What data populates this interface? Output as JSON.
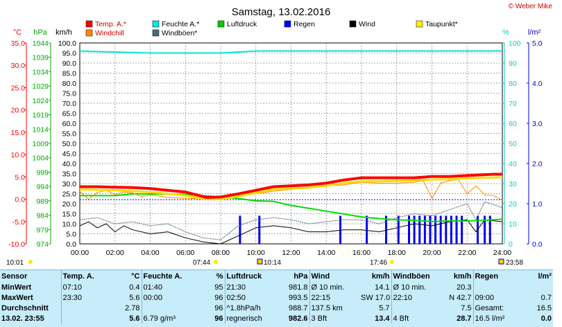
{
  "title": "Samstag, 13.02.2016",
  "copyright": "© Weber Mike",
  "axis_units": {
    "temp": "°C",
    "hpa": "hPa",
    "kmh": "km/h",
    "pct": "%",
    "rain": "l/m²"
  },
  "legend": [
    {
      "label": "Temp. A.*",
      "color": "#ff0000"
    },
    {
      "label": "Feuchte A.*",
      "color": "#00e5e5"
    },
    {
      "label": "Luftdruck",
      "color": "#00cc00"
    },
    {
      "label": "Regen",
      "color": "#0000ff"
    },
    {
      "label": "Wind",
      "color": "#000000"
    },
    {
      "label": "Taupunkt*",
      "color": "#ffee00"
    },
    {
      "label": "Windchill",
      "color": "#ff8800"
    },
    {
      "label": "Windböen*",
      "color": "#4a6b74"
    }
  ],
  "colors": {
    "temp_axis": "#ff0000",
    "hpa_axis": "#00aa00",
    "pct_axis": "#00cccc",
    "rain_axis": "#0000cc",
    "grid": "#8a8a8a"
  },
  "events": {
    "left_time": "10:01",
    "sunrise": "07:44",
    "middle": "10:14",
    "sunset": "17:46",
    "right_time": "23:58"
  },
  "chart_data": {
    "type": "line",
    "x_unit": "hour",
    "xlim": [
      0,
      24
    ],
    "x_tick_labels": [
      "00:00",
      "02:00",
      "04:00",
      "06:00",
      "08:00",
      "10:00",
      "12:00",
      "14:00",
      "16:00",
      "18:00",
      "20:00",
      "22:00",
      "24:00"
    ],
    "y_axes": {
      "temp": {
        "ticks": [
          "35.0",
          "30.0",
          "25.0",
          "20.0",
          "15.0",
          "10.0",
          "5.0",
          "0.0",
          "-5.0",
          "-10.0"
        ],
        "range": [
          -10,
          35
        ]
      },
      "hpa": {
        "ticks": [
          "1044",
          "1039",
          "1034",
          "1029",
          "1024",
          "1019",
          "1014",
          "1009",
          "1004",
          "999",
          "994",
          "989",
          "984",
          "979",
          "974"
        ],
        "range": [
          974,
          1044
        ]
      },
      "kmh": {
        "ticks": [
          "100.0",
          "95.0",
          "90.0",
          "85.0",
          "80.0",
          "75.0",
          "70.0",
          "65.0",
          "60.0",
          "55.0",
          "50.0",
          "45.0",
          "40.0",
          "35.0",
          "30.0",
          "25.0",
          "20.0",
          "15.0",
          "10.0",
          "5.0",
          "0.0"
        ],
        "range": [
          0,
          100
        ]
      },
      "pct": {
        "ticks": [
          "100",
          "90",
          "80",
          "70",
          "60",
          "50",
          "40",
          "30",
          "20",
          "10",
          "0"
        ],
        "range": [
          0,
          100
        ]
      },
      "rain": {
        "ticks": [
          "5.0",
          "4.0",
          "3.0",
          "2.0",
          "1.0",
          "0.0"
        ],
        "range": [
          0,
          5
        ]
      }
    },
    "series": [
      {
        "name": "Temp. A.*",
        "axis": "temp",
        "x": [
          0,
          1,
          2,
          3,
          4,
          5,
          6,
          7,
          7.2,
          8,
          9,
          10,
          11,
          12,
          13,
          14,
          15,
          16,
          17,
          18,
          19,
          20,
          21,
          22,
          23,
          23.5,
          24
        ],
        "y": [
          2.8,
          2.8,
          2.7,
          2.6,
          2.4,
          2.0,
          1.6,
          0.6,
          0.4,
          0.5,
          1.2,
          2.0,
          2.8,
          3.0,
          3.2,
          3.6,
          4.3,
          4.8,
          4.8,
          4.8,
          4.8,
          5.1,
          5.1,
          5.3,
          5.5,
          5.6,
          5.6
        ]
      },
      {
        "name": "Taupunkt*",
        "axis": "temp",
        "x": [
          0,
          1,
          2,
          3,
          4,
          5,
          6,
          7,
          8,
          9,
          10,
          11,
          12,
          13,
          14,
          15,
          16,
          17,
          18,
          19,
          20,
          21,
          22,
          23,
          24
        ],
        "y": [
          2.2,
          2.1,
          2.0,
          1.8,
          1.6,
          1.2,
          0.8,
          0.1,
          0.0,
          0.7,
          1.4,
          2.2,
          2.4,
          2.6,
          3.0,
          3.6,
          4.0,
          4.0,
          4.1,
          4.2,
          4.4,
          4.5,
          4.7,
          4.8,
          4.9
        ]
      },
      {
        "name": "Windchill",
        "axis": "temp",
        "x": [
          0,
          0.5,
          1,
          1.5,
          2,
          2.5,
          3,
          3.5,
          4,
          5,
          6,
          7,
          8,
          9,
          10,
          11,
          12,
          13,
          14,
          15,
          16,
          17,
          18,
          19,
          19.5,
          20,
          20.5,
          21,
          21.5,
          22,
          22.5,
          23,
          23.5,
          24
        ],
        "y": [
          1.8,
          0,
          1.5,
          2.0,
          1.0,
          1.6,
          1.4,
          0.6,
          1.0,
          0.4,
          0.2,
          0.1,
          0.0,
          0.6,
          1.2,
          1.8,
          2.2,
          2.6,
          3.0,
          3.2,
          3.8,
          3.6,
          3.6,
          3.8,
          4.2,
          0.2,
          3.6,
          4.2,
          4.4,
          1.2,
          3.0,
          1.0,
          0.8,
          -0.2
        ]
      },
      {
        "name": "Feuchte A.*",
        "axis": "pct",
        "x": [
          0,
          4,
          8,
          10,
          14,
          18,
          22,
          24
        ],
        "y": [
          96,
          95,
          95,
          96,
          96,
          96,
          96,
          96
        ]
      },
      {
        "name": "Luftdruck",
        "axis": "hpa",
        "x": [
          0,
          2,
          3,
          4,
          6,
          8,
          9,
          10,
          11,
          12,
          13,
          14,
          15,
          16,
          17,
          18,
          19,
          20,
          21,
          22,
          23,
          24
        ],
        "y": [
          990.8,
          990.8,
          991.4,
          991.4,
          991.2,
          990.4,
          989.8,
          989.0,
          988.8,
          987.4,
          986.4,
          985.4,
          984.4,
          983.4,
          982.8,
          982.4,
          982.2,
          981.8,
          982.0,
          982.0,
          982.2,
          982.6
        ]
      },
      {
        "name": "Wind",
        "axis": "kmh",
        "x": [
          0,
          0.5,
          1,
          1.5,
          2,
          2.5,
          3,
          4,
          5,
          6,
          7,
          8,
          9,
          10,
          11,
          12,
          13,
          14,
          15,
          16,
          17,
          18,
          19,
          20,
          21,
          22,
          22.5,
          23,
          24
        ],
        "y": [
          9,
          11,
          8,
          10,
          6,
          9,
          7,
          5,
          6,
          3,
          1,
          0,
          4,
          8,
          9,
          8,
          6,
          6,
          7,
          7,
          6,
          8,
          10,
          9,
          11,
          12,
          6,
          12,
          11
        ]
      },
      {
        "name": "Windböen*",
        "axis": "kmh",
        "x": [
          0,
          1,
          2,
          3,
          4,
          5,
          6,
          7,
          8,
          9,
          10,
          11,
          12,
          13,
          14,
          15,
          16,
          17,
          18,
          19,
          20,
          21,
          22,
          22.5,
          23,
          24
        ],
        "y": [
          12,
          13,
          10,
          11,
          9,
          10,
          6,
          3,
          2,
          9,
          12,
          13,
          12,
          10,
          11,
          12,
          12,
          10,
          13,
          15,
          14,
          17,
          20,
          12,
          21,
          18
        ]
      },
      {
        "name": "Regen",
        "axis": "rain",
        "type": "bar",
        "x": [
          9.1,
          10.2,
          14.8,
          16.3,
          17.4,
          18.1,
          18.7,
          19.0,
          19.3,
          19.6,
          19.9,
          20.2,
          20.5,
          20.8,
          21.1,
          21.4,
          21.7,
          22.6,
          23.0,
          23.3
        ],
        "y": [
          0.7,
          0.7,
          0.7,
          0.7,
          0.7,
          0.7,
          0.7,
          0.7,
          0.7,
          0.7,
          0.7,
          0.7,
          0.7,
          0.7,
          0.7,
          0.7,
          0.7,
          0.7,
          0.7,
          0.7
        ]
      }
    ],
    "rain_sum_line": {
      "axis": "rain",
      "value": 1.1,
      "from": 0,
      "to": 24
    }
  },
  "stats": {
    "headers": [
      "Sensor",
      "Temp. A.",
      "°C",
      "Feuchte A.",
      "%",
      "Luftdruck",
      "hPa",
      "Wind",
      "km/h",
      "Windböen",
      "km/h",
      "Regen",
      "l/m²"
    ],
    "rows": [
      {
        "label": "MinWert",
        "cells": [
          "07:10",
          "0.4",
          "01:40",
          "95",
          "21:30",
          "981.8",
          "Ø 10 min.",
          "14.1",
          "Ø 10 min.",
          "20.3",
          "",
          ""
        ]
      },
      {
        "label": "MaxWert",
        "cells": [
          "23:30",
          "5.6",
          "00:00",
          "96",
          "02:50",
          "993.5",
          "22:15",
          "SW 17.0",
          "22:10",
          "N 42.7",
          "09:00",
          "0.7"
        ]
      },
      {
        "label": "Durchschnitt",
        "cells": [
          "",
          "2.78",
          "",
          "96",
          "^1.8hPa/h",
          "988.7",
          "137.5 km",
          "5.7",
          "",
          "7.5",
          "Gesamt:",
          "16.5"
        ]
      },
      {
        "label": "13.02. 23:55",
        "cells": [
          "",
          "5.6",
          "6.79 g/m³",
          "96",
          "regnerisch",
          "982.6",
          "3 Bft",
          "13.4",
          "4 Bft",
          "28.7",
          "16.5 l/m²",
          "0.0"
        ]
      }
    ]
  }
}
